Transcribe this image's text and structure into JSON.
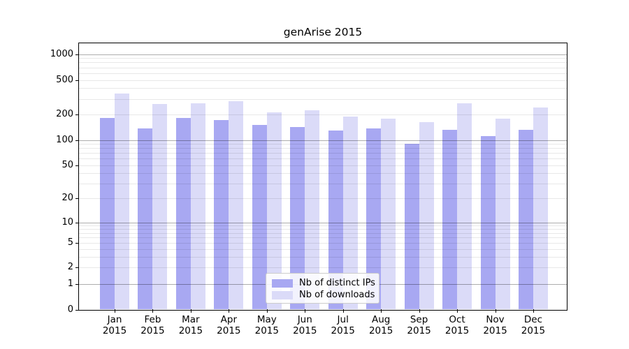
{
  "chart_data": {
    "type": "bar",
    "title": "genArise 2015",
    "categories": [
      "Jan",
      "Feb",
      "Mar",
      "Apr",
      "May",
      "Jun",
      "Jul",
      "Aug",
      "Sep",
      "Oct",
      "Nov",
      "Dec"
    ],
    "year_label": "2015",
    "series": [
      {
        "name": "Nb of distinct IPs",
        "color": "#a8a8f2",
        "values": [
          182,
          136,
          181,
          171,
          150,
          142,
          128,
          135,
          90,
          130,
          110,
          130
        ]
      },
      {
        "name": "Nb of downloads",
        "color": "#dbdbf8",
        "values": [
          345,
          260,
          267,
          285,
          210,
          220,
          186,
          176,
          162,
          266,
          178,
          238
        ]
      }
    ],
    "y_ticks": [
      0,
      1,
      2,
      5,
      10,
      20,
      50,
      100,
      200,
      500,
      1000
    ],
    "y_scale": "log above 1, linear 0-1",
    "ylim": [
      0,
      1500
    ],
    "grid": "horizontal major at 1,10,100,1000 and minor at 2-9 per decade",
    "legend_position": "bottom-center-inside"
  },
  "colors": {
    "background": "#ffffff",
    "bar_distinct_ips": "#a8a8f2",
    "bar_downloads": "#dbdbf8",
    "spine": "#000000",
    "text": "#000000",
    "legend_border": "#cccccc"
  }
}
